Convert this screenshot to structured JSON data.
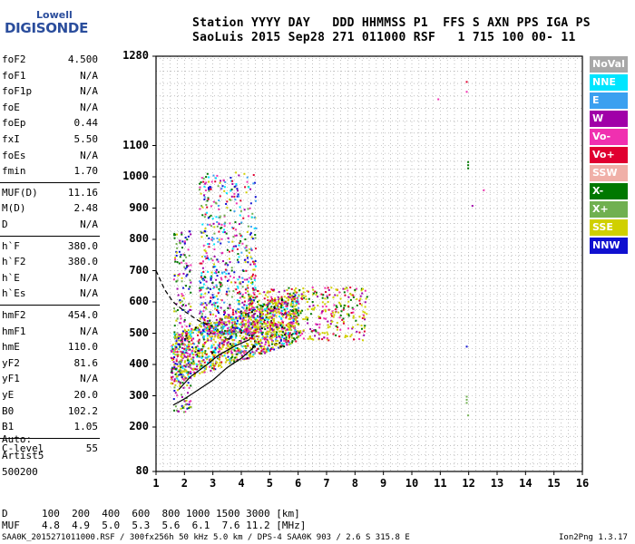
{
  "logo": {
    "line1": "Lowell",
    "line2": "DIGISONDE"
  },
  "header": {
    "line1": "Station YYYY DAY   DDD HHMMSS P1  FFS S AXN PPS IGA PS",
    "line2": "SaoLuis 2015 Sep28 271 011000 RSF   1 715 100 00- 11"
  },
  "params": [
    {
      "k": "foF2",
      "v": "4.500"
    },
    {
      "k": "foF1",
      "v": "N/A"
    },
    {
      "k": "foF1p",
      "v": "N/A"
    },
    {
      "k": "foE",
      "v": "N/A"
    },
    {
      "k": "foEp",
      "v": "0.44"
    },
    {
      "k": "fxI",
      "v": "5.50"
    },
    {
      "k": "foEs",
      "v": "N/A"
    },
    {
      "k": "fmin",
      "v": "1.70"
    },
    {
      "k": "MUF(D)",
      "v": "11.16"
    },
    {
      "k": "M(D)",
      "v": "2.48"
    },
    {
      "k": "D",
      "v": "N/A"
    },
    {
      "k": "h`F",
      "v": "380.0"
    },
    {
      "k": "h`F2",
      "v": "380.0"
    },
    {
      "k": "h`E",
      "v": "N/A"
    },
    {
      "k": "h`Es",
      "v": "N/A"
    },
    {
      "k": "hmF2",
      "v": "454.0"
    },
    {
      "k": "hmF1",
      "v": "N/A"
    },
    {
      "k": "hmE",
      "v": "110.0"
    },
    {
      "k": "yF2",
      "v": "81.6"
    },
    {
      "k": "yF1",
      "v": "N/A"
    },
    {
      "k": "yE",
      "v": "20.0"
    },
    {
      "k": "B0",
      "v": "102.2"
    },
    {
      "k": "B1",
      "v": "1.05"
    },
    {
      "k": "C-level",
      "v": "55"
    }
  ],
  "autoscaling": {
    "line1": "Auto:",
    "line2": "Artist5",
    "line3": "500200"
  },
  "legend": [
    {
      "label": "NoVal",
      "color": "#a8a8a8"
    },
    {
      "label": "NNE",
      "color": "#00e5ff"
    },
    {
      "label": "E",
      "color": "#3aa0f0"
    },
    {
      "label": "W",
      "color": "#a000a8"
    },
    {
      "label": "Vo-",
      "color": "#f030b0"
    },
    {
      "label": "Vo+",
      "color": "#e00030"
    },
    {
      "label": "SSW",
      "color": "#f0b0a8"
    },
    {
      "label": "X-",
      "color": "#007800"
    },
    {
      "label": "X+",
      "color": "#70b050"
    },
    {
      "label": "SSE",
      "color": "#d0d000"
    },
    {
      "label": "NNW",
      "color": "#1010d0"
    }
  ],
  "chart_data": {
    "type": "scatter",
    "title": "",
    "xlabel": "",
    "ylabel": "",
    "xlim": [
      1,
      16
    ],
    "ylim": [
      80,
      1280
    ],
    "x_ticks": [
      "1",
      "2",
      "3",
      "4",
      "5",
      "6",
      "7",
      "8",
      "9",
      "10",
      "11",
      "12",
      "13",
      "14",
      "15",
      "16"
    ],
    "y_ticks": [
      "80",
      "200",
      "300",
      "400",
      "500",
      "600",
      "700",
      "800",
      "900",
      "1000",
      "1100",
      "1280"
    ],
    "traces": [
      {
        "x": [
          1.6,
          2.0,
          2.5,
          3.0,
          3.5,
          4.0,
          4.5
        ],
        "y": [
          270,
          290,
          320,
          350,
          390,
          420,
          460
        ]
      },
      {
        "x": [
          1.8,
          2.2,
          2.8,
          3.2,
          3.8,
          4.3
        ],
        "y": [
          320,
          360,
          400,
          430,
          460,
          480
        ]
      },
      {
        "x": [
          1.0,
          1.3,
          1.6,
          2.0,
          2.5,
          3.0
        ],
        "y": [
          700,
          640,
          600,
          570,
          540,
          520
        ]
      }
    ]
  },
  "distance": {
    "label": "D",
    "values": "100  200  400  600  800 1000 1500 3000 [km]",
    "muf_label": "MUF",
    "muf_values": "4.8  4.9  5.0  5.3  5.6  6.1  7.6 11.2 [MHz]"
  },
  "footer": {
    "left": "SAA0K_2015271011000.RSF / 300fx256h 50 kHz 5.0 km / DPS-4 SAA0K 903 / 2.6 S 315.8 E",
    "right": "Ion2Png 1.3.17"
  },
  "colors": {
    "grid": "#808080",
    "axis": "#000000",
    "trace": "#000000"
  }
}
